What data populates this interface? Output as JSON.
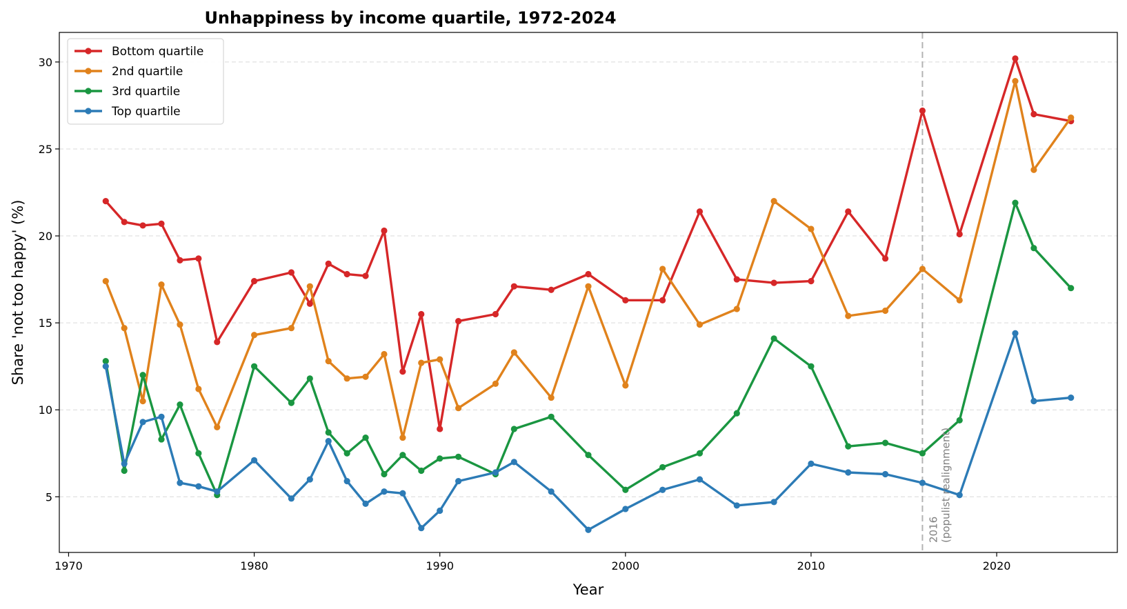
{
  "chart_data": {
    "type": "line",
    "title": "Unhappiness by income quartile, 1972-2024",
    "xlabel": "Year",
    "ylabel": "Share 'not too happy' (%)",
    "xlim": [
      1969.5,
      2026.5
    ],
    "ylim": [
      1.8,
      31.7
    ],
    "x_ticks": [
      1970,
      1980,
      1990,
      2000,
      2010,
      2020
    ],
    "y_ticks": [
      5,
      10,
      15,
      20,
      25,
      30
    ],
    "grid": "y-dashed",
    "legend_position": "top-left",
    "x": [
      1972,
      1973,
      1974,
      1975,
      1976,
      1977,
      1978,
      1980,
      1982,
      1983,
      1984,
      1985,
      1986,
      1987,
      1988,
      1989,
      1990,
      1991,
      1993,
      1994,
      1996,
      1998,
      2000,
      2002,
      2004,
      2006,
      2008,
      2010,
      2012,
      2014,
      2016,
      2018,
      2021,
      2022,
      2024
    ],
    "series": [
      {
        "name": "Bottom quartile",
        "color": "#d62728",
        "values": [
          22.0,
          20.8,
          20.6,
          20.7,
          18.6,
          18.7,
          13.9,
          17.4,
          17.9,
          16.1,
          18.4,
          17.8,
          17.7,
          20.3,
          12.2,
          15.5,
          8.9,
          15.1,
          15.5,
          17.1,
          16.9,
          17.8,
          16.3,
          16.3,
          21.4,
          17.5,
          17.3,
          17.4,
          21.4,
          18.7,
          27.2,
          20.1,
          30.2,
          27.0,
          26.6
        ]
      },
      {
        "name": "2nd quartile",
        "color": "#e0821c",
        "values": [
          17.4,
          14.7,
          10.5,
          17.2,
          14.9,
          11.2,
          9.0,
          14.3,
          14.7,
          17.1,
          12.8,
          11.8,
          11.9,
          13.2,
          8.4,
          12.7,
          12.9,
          10.1,
          11.5,
          13.3,
          10.7,
          17.1,
          11.4,
          18.1,
          14.9,
          15.8,
          22.0,
          20.4,
          15.4,
          15.7,
          18.1,
          16.3,
          28.9,
          23.8,
          26.8
        ]
      },
      {
        "name": "3rd quartile",
        "color": "#1a9641",
        "values": [
          12.8,
          6.5,
          12.0,
          8.3,
          10.3,
          7.5,
          5.1,
          12.5,
          10.4,
          11.8,
          8.7,
          7.5,
          8.4,
          6.3,
          7.4,
          6.5,
          7.2,
          7.3,
          6.3,
          8.9,
          9.6,
          7.4,
          5.4,
          6.7,
          7.5,
          9.8,
          14.1,
          12.5,
          7.9,
          8.1,
          7.5,
          9.4,
          21.9,
          19.3,
          17.0
        ]
      },
      {
        "name": "Top quartile",
        "color": "#2c7bb6",
        "values": [
          12.5,
          6.9,
          9.3,
          9.6,
          5.8,
          5.6,
          5.3,
          7.1,
          4.9,
          6.0,
          8.2,
          5.9,
          4.6,
          5.3,
          5.2,
          3.2,
          4.2,
          5.9,
          6.4,
          7.0,
          5.3,
          3.1,
          4.3,
          5.4,
          6.0,
          4.5,
          4.7,
          6.9,
          6.4,
          6.3,
          5.8,
          5.1,
          14.4,
          10.5,
          10.7
        ]
      }
    ],
    "annotations": [
      {
        "x": 2016,
        "style": "dashed-vertical",
        "color": "#b3b3b3",
        "text_line1": "2016",
        "text_line2": "(populist realignment)"
      }
    ]
  }
}
